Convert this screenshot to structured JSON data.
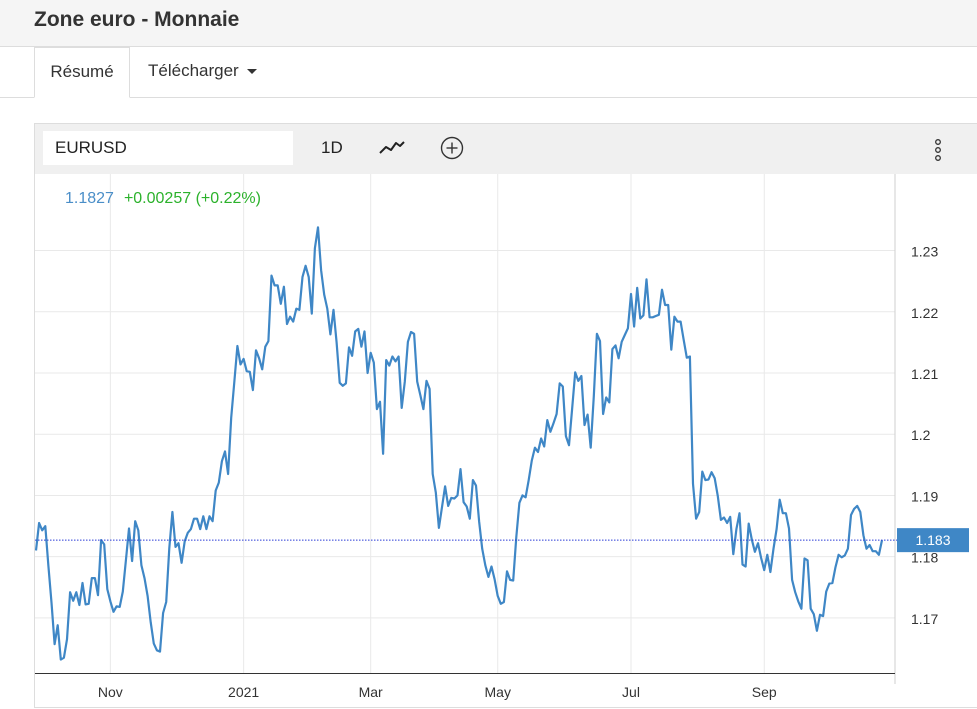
{
  "page": {
    "title": "Zone euro - Monnaie"
  },
  "tabs": [
    {
      "label": "Résumé"
    },
    {
      "label": "Télécharger"
    }
  ],
  "toolbar": {
    "symbol": "EURUSD",
    "interval": "1D"
  },
  "quote": {
    "last": "1.1827",
    "change": "+0.00257 (+0.22%)"
  },
  "colors": {
    "line": "#3f87c6",
    "last_badge": "#3f87c6",
    "change_positive": "#2cb22c"
  },
  "chart_data": {
    "type": "line",
    "ylim": [
      1.161,
      1.2425
    ],
    "y_ticks": [
      1.17,
      1.18,
      1.19,
      1.2,
      1.21,
      1.22,
      1.23
    ],
    "y_tick_labels": [
      "1.17",
      "1.18",
      "1.19",
      "1.2",
      "1.21",
      "1.22",
      "1.23"
    ],
    "x_ticks": [
      {
        "label": "Nov",
        "index": 24
      },
      {
        "label": "2021",
        "index": 67
      },
      {
        "label": "Mar",
        "index": 108
      },
      {
        "label": "May",
        "index": 149
      },
      {
        "label": "Jul",
        "index": 192
      },
      {
        "label": "Sep",
        "index": 235
      }
    ],
    "last_value_label": "1.183",
    "last_value": 1.1827,
    "grid": true,
    "series": [
      {
        "values": [
          1.181,
          1.1855,
          1.1843,
          1.185,
          1.1785,
          1.1725,
          1.1657,
          1.1688,
          1.1632,
          1.1635,
          1.1665,
          1.1742,
          1.1728,
          1.1742,
          1.1721,
          1.1757,
          1.1722,
          1.1723,
          1.1765,
          1.1765,
          1.1737,
          1.1827,
          1.182,
          1.1747,
          1.1727,
          1.171,
          1.1719,
          1.1718,
          1.1743,
          1.1794,
          1.1846,
          1.1793,
          1.1858,
          1.1843,
          1.1786,
          1.1765,
          1.1736,
          1.1693,
          1.1658,
          1.1647,
          1.1645,
          1.1708,
          1.1726,
          1.1814,
          1.1873,
          1.1816,
          1.1822,
          1.179,
          1.1825,
          1.1839,
          1.1845,
          1.1862,
          1.1862,
          1.1845,
          1.1866,
          1.1845,
          1.1866,
          1.1858,
          1.1908,
          1.1921,
          1.1956,
          1.1972,
          1.1935,
          1.2027,
          1.2085,
          1.2144,
          1.2114,
          1.2123,
          1.2103,
          1.2102,
          1.2072,
          1.2137,
          1.2124,
          1.2106,
          1.2143,
          1.2152,
          1.2259,
          1.2243,
          1.2243,
          1.2213,
          1.2241,
          1.218,
          1.2192,
          1.2184,
          1.2205,
          1.2203,
          1.2257,
          1.2275,
          1.2257,
          1.2197,
          1.2304,
          1.2338,
          1.2268,
          1.2228,
          1.2205,
          1.2163,
          1.2203,
          1.215,
          1.2084,
          1.2079,
          1.2083,
          1.2142,
          1.2128,
          1.2168,
          1.2172,
          1.2143,
          1.2168,
          1.21,
          1.2133,
          1.2117,
          1.2041,
          1.2053,
          1.1968,
          1.2121,
          1.2112,
          1.2127,
          1.2119,
          1.2127,
          1.2043,
          1.2086,
          1.2151,
          1.2167,
          1.2164,
          1.2086,
          1.2064,
          1.2041,
          1.2087,
          1.2074,
          1.1935,
          1.1905,
          1.1847,
          1.1881,
          1.1915,
          1.1883,
          1.1896,
          1.1895,
          1.19,
          1.1943,
          1.1889,
          1.1882,
          1.1862,
          1.1925,
          1.1916,
          1.1858,
          1.1813,
          1.1786,
          1.1767,
          1.1784,
          1.1763,
          1.1736,
          1.1723,
          1.1726,
          1.1776,
          1.1762,
          1.1761,
          1.1832,
          1.1888,
          1.19,
          1.1897,
          1.1925,
          1.1957,
          1.1978,
          1.1971,
          1.1993,
          1.198,
          1.2023,
          1.2004,
          1.2018,
          1.2033,
          1.2083,
          1.2078,
          1.1997,
          1.1982,
          1.2041,
          1.2101,
          1.2087,
          1.2095,
          1.2015,
          1.2032,
          1.1978,
          1.2062,
          1.2164,
          1.2152,
          1.2033,
          1.206,
          1.2052,
          1.2139,
          1.2145,
          1.2124,
          1.2151,
          1.2162,
          1.2173,
          1.2229,
          1.2176,
          1.2239,
          1.2189,
          1.2194,
          1.2253,
          1.2191,
          1.2191,
          1.2193,
          1.2195,
          1.2236,
          1.2211,
          1.2211,
          1.2138,
          1.2192,
          1.2184,
          1.2184,
          1.2154,
          1.2125,
          1.2127,
          1.1919,
          1.1862,
          1.1873,
          1.1939,
          1.1925,
          1.1926,
          1.1938,
          1.1928,
          1.1899,
          1.186,
          1.1864,
          1.1855,
          1.1865,
          1.1804,
          1.1845,
          1.1871,
          1.1787,
          1.1784,
          1.1854,
          1.1828,
          1.1808,
          1.1822,
          1.1798,
          1.1778,
          1.1803,
          1.1775,
          1.1813,
          1.1845,
          1.1893,
          1.1871,
          1.1871,
          1.1846,
          1.1762,
          1.1742,
          1.1727,
          1.1715,
          1.1797,
          1.1794,
          1.1715,
          1.1706,
          1.1679,
          1.1705,
          1.1703,
          1.1743,
          1.1756,
          1.1757,
          1.1783,
          1.1803,
          1.1799,
          1.1802,
          1.1813,
          1.1868,
          1.1878,
          1.1883,
          1.1873,
          1.1835,
          1.1813,
          1.1819,
          1.1809,
          1.1809,
          1.1803,
          1.1827
        ]
      }
    ]
  }
}
